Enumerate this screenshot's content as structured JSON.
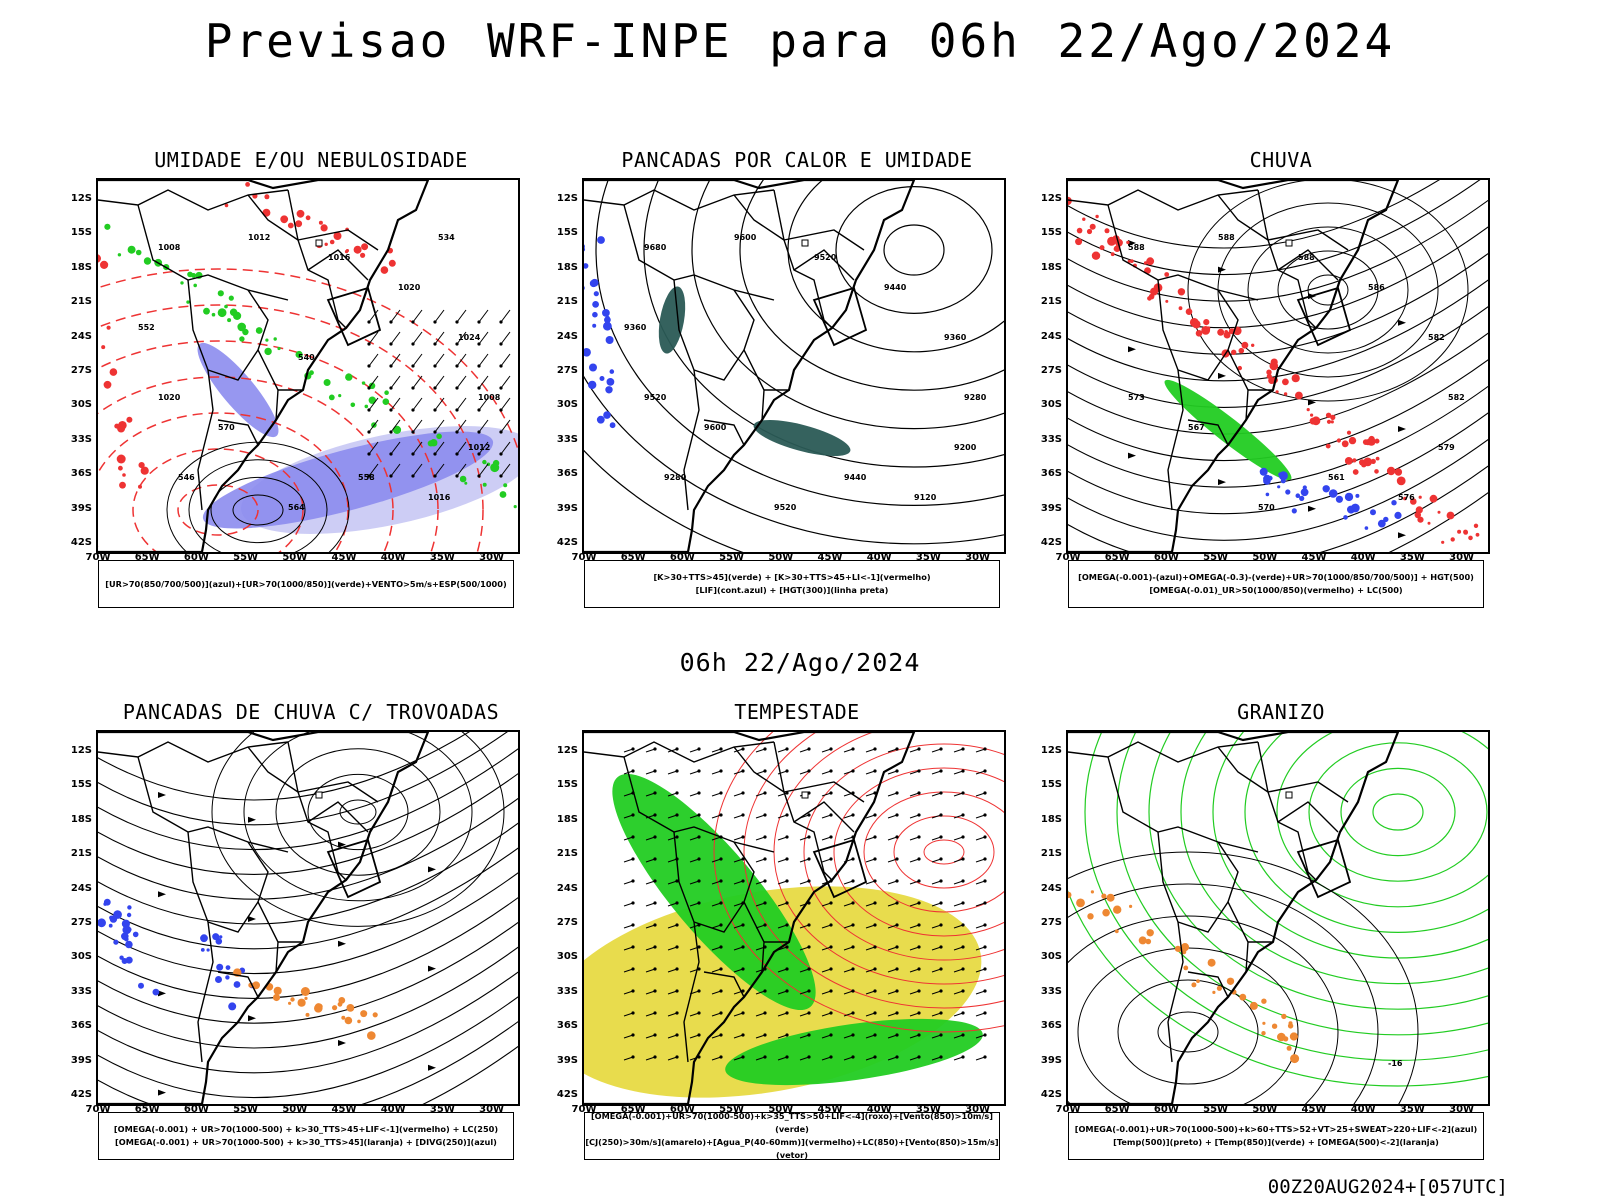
{
  "header": {
    "title": "Previsao WRF-INPE  para 06h 22/Ago/2024",
    "subtitle": "06h 22/Ago/2024",
    "run_stamp": "00Z20AUG2024+[057UTC]"
  },
  "axes": {
    "latitudes": [
      "12S",
      "15S",
      "18S",
      "21S",
      "24S",
      "27S",
      "30S",
      "33S",
      "36S",
      "39S",
      "42S"
    ],
    "longitudes": [
      "70W",
      "65W",
      "60W",
      "55W",
      "50W",
      "45W",
      "40W",
      "35W",
      "30W"
    ]
  },
  "colors": {
    "blue": "#3344ee",
    "green": "#22cc22",
    "red": "#ee3333",
    "orange": "#ee8833",
    "yellow": "#e6d83a",
    "dark_teal": "#2a5a55",
    "light_blue_fill": "#8c8cee",
    "pale_blue_fill": "#c8c8f4"
  },
  "panels": [
    {
      "id": "umidade",
      "title": "UMIDADE E/OU NEBULOSIDADE",
      "legend": [
        "[UR>70(850/700/500)](azul)+[UR>70(1000/850)](verde)+VENTO>5m/s+ESP(500/1000)"
      ],
      "contour_labels": [
        "1008",
        "1012",
        "1016",
        "1020",
        "1024",
        "1008",
        "1012",
        "1016",
        "1020",
        "570",
        "564",
        "558",
        "552",
        "546",
        "540",
        "534"
      ]
    },
    {
      "id": "pancadas-calor",
      "title": "PANCADAS POR CALOR E UMIDADE",
      "legend": [
        "[K>30+TTS>45](verde) + [K>30+TTS>45+LI<-1](vermelho)",
        "[LIF](cont.azul) + [HGT(300)](linha preta)"
      ],
      "contour_labels": [
        "9680",
        "9600",
        "9520",
        "9440",
        "9360",
        "9280",
        "9200",
        "9120",
        "9520",
        "9600",
        "9520",
        "9440",
        "9360",
        "9280"
      ]
    },
    {
      "id": "chuva",
      "title": "CHUVA",
      "legend": [
        "[OMEGA(-0.001)-(azul)+OMEGA(-0.3)-(verde)+UR>70(1000/850/700/500)] + HGT(500)",
        "[OMEGA(-0.01)_UR>50(1000/850)(vermelho) + LC(500)"
      ],
      "contour_labels": [
        "588",
        "588",
        "588",
        "586",
        "582",
        "582",
        "579",
        "576",
        "573",
        "567",
        "570",
        "561"
      ]
    },
    {
      "id": "trovoadas",
      "title": "PANCADAS DE CHUVA C/ TROVOADAS",
      "legend": [
        "[OMEGA(-0.001) + UR>70(1000-500) + k>30_TTS>45+LIF<-1](vermelho) + LC(250)",
        "[OMEGA(-0.001) + UR>70(1000-500) + k>30_TTS>45](laranja) + [DIVG(250)](azul)"
      ],
      "contour_labels": []
    },
    {
      "id": "tempestade",
      "title": "TEMPESTADE",
      "legend": [
        "[OMEGA(-0.001)+UR>70(1000-500)+k>35_TTS>50+LIF<-4](roxo)+[Vento(850)>10m/s](verde)",
        "[CJ(250)>30m/s](amarelo)+[Agua_P(40-60mm)](vermelho)+LC(850)+[Vento(850)>15m/s](vetor)"
      ],
      "contour_labels": []
    },
    {
      "id": "granizo",
      "title": "GRANIZO",
      "legend": [
        "[OMEGA(-0.001)+UR>70(1000-500)+k>60+TTS>52+VT>25+SWEAT>220+LIF<-2](azul)",
        "[Temp(500)](preto) + [Temp(850)](verde) + [OMEGA(500)<-2](laranja)"
      ],
      "contour_labels": [
        "-16"
      ]
    }
  ]
}
